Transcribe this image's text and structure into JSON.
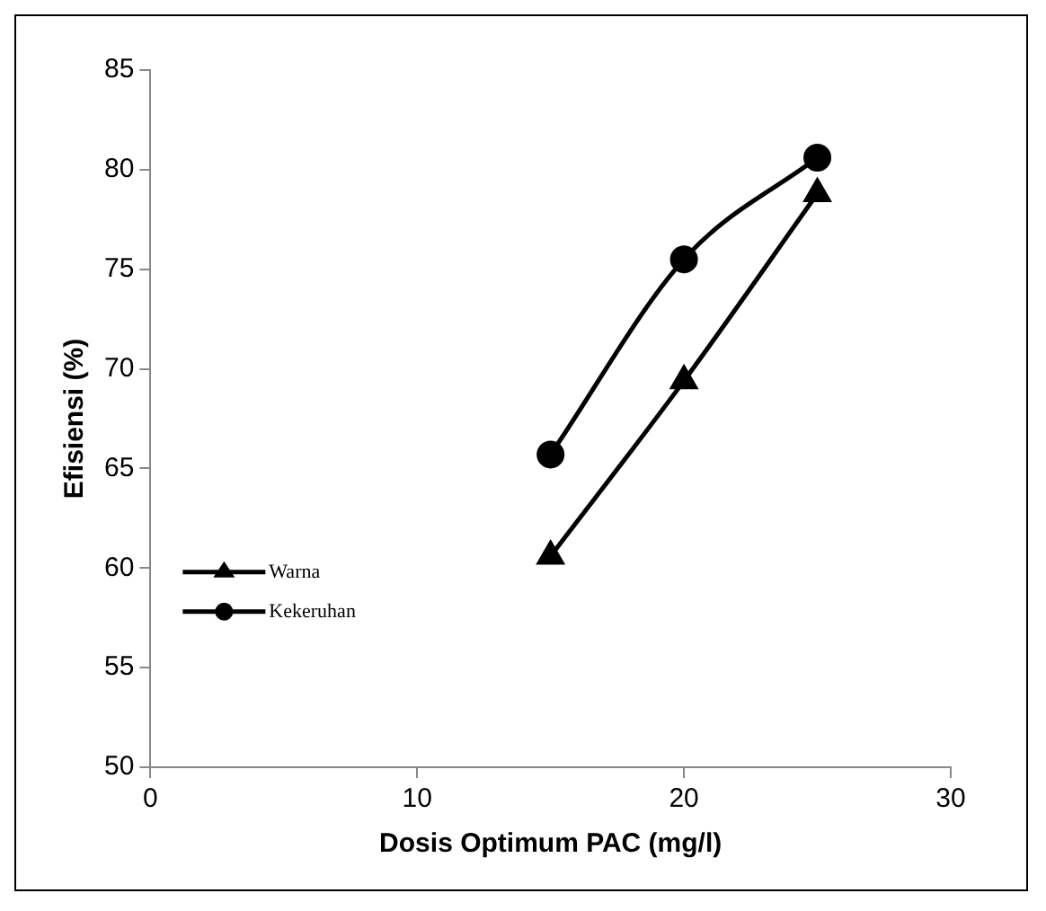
{
  "chart_data": {
    "type": "line",
    "xlabel": "Dosis Optimum PAC (mg/l)",
    "ylabel": "Efisiensi (%)",
    "xlim": [
      0,
      30
    ],
    "xticks": [
      0,
      10,
      20,
      30
    ],
    "ylim": [
      50,
      85
    ],
    "yticks": [
      50,
      55,
      60,
      65,
      70,
      75,
      80,
      85
    ],
    "grid": false,
    "legend": "left",
    "series": [
      {
        "name": "Warna",
        "color": "#000000",
        "marker": "triangle",
        "x": [
          15,
          20,
          25
        ],
        "values": [
          60.6,
          69.4,
          78.8
        ]
      },
      {
        "name": "Kekeruhan",
        "color": "#000000",
        "marker": "circle",
        "x": [
          15,
          20,
          25
        ],
        "values": [
          65.7,
          75.5,
          80.6
        ]
      }
    ]
  }
}
